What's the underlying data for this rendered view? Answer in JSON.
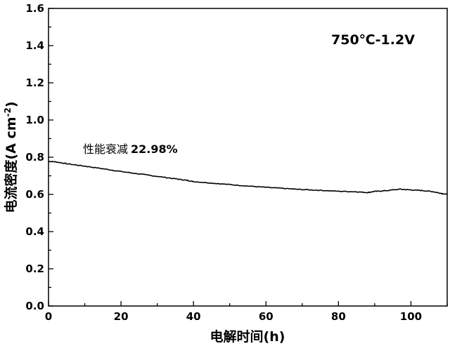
{
  "chart_data": {
    "type": "line",
    "xlabel": "电解时间(h)",
    "ylabel": "电流密度(A cm",
    "ylabel_sup": "-2",
    "ylabel_close": ")",
    "xlim": [
      0,
      110
    ],
    "ylim": [
      0.0,
      1.6
    ],
    "x_ticks": [
      0,
      20,
      40,
      60,
      80,
      100
    ],
    "y_ticks": [
      "0.0",
      "0.2",
      "0.4",
      "0.6",
      "0.8",
      "1.0",
      "1.2",
      "1.4",
      "1.6"
    ],
    "annotations": {
      "condition": "750℃-1.2V",
      "degradation_prefix": "性能衰减",
      "degradation_value": "22.98%"
    },
    "grid": false,
    "series": [
      {
        "color": "#000000",
        "x": [
          0,
          2,
          5,
          10,
          15,
          20,
          25,
          30,
          35,
          38,
          40,
          45,
          50,
          55,
          60,
          65,
          70,
          75,
          80,
          85,
          88,
          90,
          93,
          97,
          100,
          103,
          106,
          108,
          110
        ],
        "y": [
          0.778,
          0.775,
          0.765,
          0.752,
          0.738,
          0.723,
          0.71,
          0.697,
          0.684,
          0.676,
          0.669,
          0.661,
          0.653,
          0.645,
          0.638,
          0.632,
          0.626,
          0.622,
          0.617,
          0.614,
          0.61,
          0.616,
          0.62,
          0.628,
          0.624,
          0.621,
          0.615,
          0.607,
          0.6
        ]
      }
    ]
  }
}
